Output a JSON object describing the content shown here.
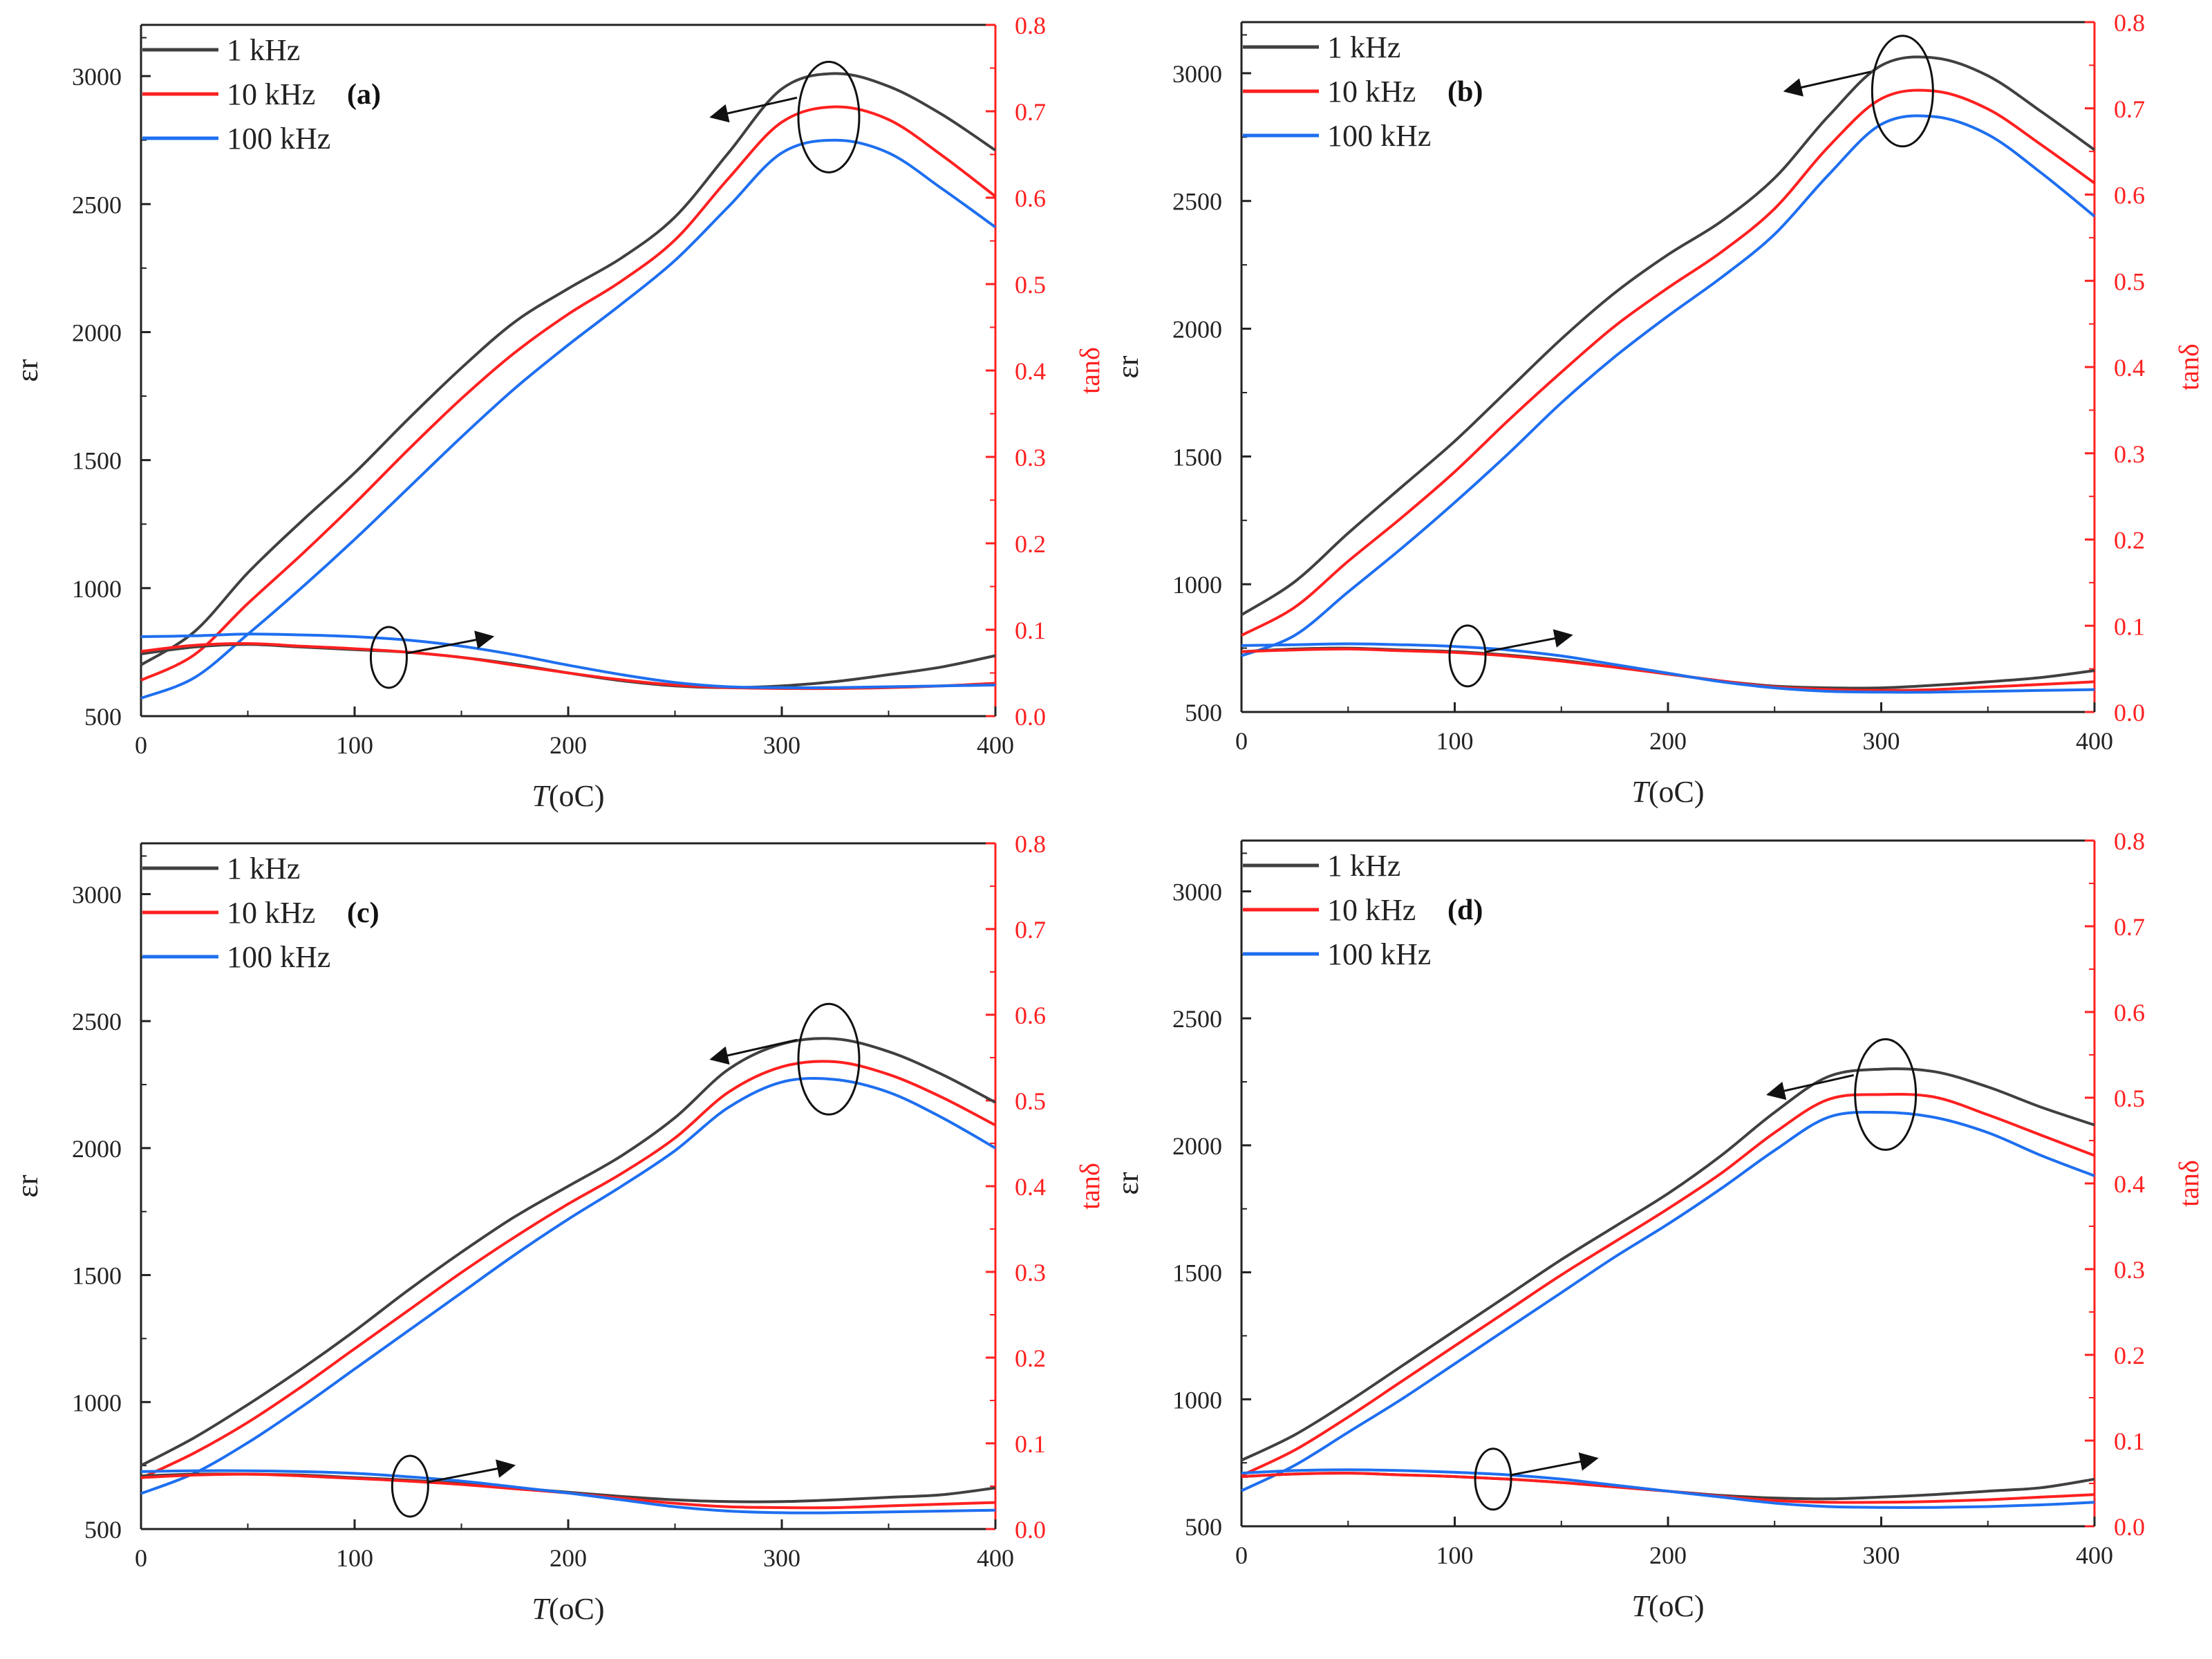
{
  "chart_data": [
    {
      "panel": "(a)",
      "type": "line",
      "xlabel_italic": "T",
      "xlabel_unit": "(oC)",
      "ylabel": "εr",
      "y2label": "tanδ",
      "xlim": [
        0,
        400
      ],
      "ylim": [
        500,
        3200
      ],
      "y2lim": [
        0,
        0.8
      ],
      "xticks": [
        "0",
        "100",
        "200",
        "300",
        "400"
      ],
      "yticks": [
        "500",
        "1000",
        "1500",
        "2000",
        "2500",
        "3000"
      ],
      "y2ticks": [
        "0.0",
        "0.1",
        "0.2",
        "0.3",
        "0.4",
        "0.5",
        "0.6",
        "0.7",
        "0.8"
      ],
      "legend": [
        "1 kHz",
        "10 kHz",
        "100 kHz"
      ],
      "x": [
        0,
        25,
        50,
        75,
        100,
        125,
        150,
        175,
        200,
        225,
        250,
        275,
        300,
        325,
        350,
        375,
        400
      ],
      "permittivity": [
        {
          "name": "1 kHz",
          "values": [
            700,
            830,
            1060,
            1260,
            1450,
            1660,
            1860,
            2040,
            2170,
            2290,
            2450,
            2700,
            2950,
            3010,
            2960,
            2850,
            2710
          ]
        },
        {
          "name": "10 kHz",
          "values": [
            640,
            740,
            940,
            1130,
            1330,
            1540,
            1740,
            1920,
            2070,
            2200,
            2360,
            2600,
            2820,
            2880,
            2830,
            2690,
            2530
          ]
        },
        {
          "name": "100 kHz",
          "values": [
            570,
            650,
            820,
            1000,
            1190,
            1390,
            1590,
            1780,
            1950,
            2110,
            2280,
            2490,
            2700,
            2750,
            2700,
            2560,
            2410
          ]
        }
      ],
      "loss": [
        {
          "name": "1 kHz",
          "values": [
            0.072,
            0.08,
            0.083,
            0.08,
            0.077,
            0.074,
            0.068,
            0.06,
            0.05,
            0.041,
            0.035,
            0.033,
            0.035,
            0.04,
            0.048,
            0.057,
            0.07
          ]
        },
        {
          "name": "10 kHz",
          "values": [
            0.075,
            0.082,
            0.084,
            0.081,
            0.078,
            0.074,
            0.068,
            0.059,
            0.05,
            0.042,
            0.036,
            0.033,
            0.032,
            0.032,
            0.033,
            0.035,
            0.038
          ]
        },
        {
          "name": "100 kHz",
          "values": [
            0.092,
            0.093,
            0.095,
            0.094,
            0.092,
            0.088,
            0.081,
            0.071,
            0.059,
            0.048,
            0.039,
            0.034,
            0.033,
            0.033,
            0.034,
            0.035,
            0.036
          ]
        }
      ],
      "markers": {
        "perm_x": 322,
        "perm_y": 2840,
        "loss_x": 116,
        "loss_y": 0.068
      }
    },
    {
      "panel": "(b)",
      "type": "line",
      "xlabel_italic": "T",
      "xlabel_unit": "(oC)",
      "ylabel": "εr",
      "y2label": "tanδ",
      "xlim": [
        0,
        400
      ],
      "ylim": [
        500,
        3200
      ],
      "y2lim": [
        0,
        0.8
      ],
      "xticks": [
        "0",
        "100",
        "200",
        "300",
        "400"
      ],
      "yticks": [
        "500",
        "1000",
        "1500",
        "2000",
        "2500",
        "3000"
      ],
      "y2ticks": [
        "0.0",
        "0.1",
        "0.2",
        "0.3",
        "0.4",
        "0.5",
        "0.6",
        "0.7",
        "0.8"
      ],
      "legend": [
        "1 kHz",
        "10 kHz",
        "100 kHz"
      ],
      "x": [
        0,
        25,
        50,
        75,
        100,
        125,
        150,
        175,
        200,
        225,
        250,
        275,
        300,
        325,
        350,
        375,
        400
      ],
      "permittivity": [
        {
          "name": "1 kHz",
          "values": [
            880,
            1010,
            1200,
            1380,
            1560,
            1760,
            1960,
            2140,
            2290,
            2420,
            2590,
            2830,
            3030,
            3060,
            2990,
            2850,
            2700
          ]
        },
        {
          "name": "10 kHz",
          "values": [
            800,
            910,
            1090,
            1260,
            1440,
            1640,
            1830,
            2010,
            2160,
            2300,
            2470,
            2710,
            2900,
            2930,
            2860,
            2720,
            2570
          ]
        },
        {
          "name": "100 kHz",
          "values": [
            720,
            800,
            970,
            1140,
            1320,
            1510,
            1710,
            1890,
            2050,
            2200,
            2370,
            2600,
            2800,
            2830,
            2760,
            2610,
            2440
          ]
        }
      ],
      "loss": [
        {
          "name": "1 kHz",
          "values": [
            0.07,
            0.073,
            0.074,
            0.072,
            0.07,
            0.066,
            0.06,
            0.052,
            0.044,
            0.036,
            0.03,
            0.028,
            0.028,
            0.031,
            0.035,
            0.04,
            0.048
          ]
        },
        {
          "name": "10 kHz",
          "values": [
            0.07,
            0.072,
            0.073,
            0.071,
            0.069,
            0.065,
            0.059,
            0.052,
            0.044,
            0.036,
            0.029,
            0.026,
            0.025,
            0.026,
            0.029,
            0.032,
            0.035
          ]
        },
        {
          "name": "100 kHz",
          "values": [
            0.077,
            0.078,
            0.079,
            0.078,
            0.076,
            0.072,
            0.065,
            0.055,
            0.045,
            0.035,
            0.028,
            0.024,
            0.023,
            0.023,
            0.024,
            0.025,
            0.026
          ]
        }
      ],
      "markers": {
        "perm_x": 310,
        "perm_y": 2930,
        "loss_x": 106,
        "loss_y": 0.065
      }
    },
    {
      "panel": "(c)",
      "type": "line",
      "xlabel_italic": "T",
      "xlabel_unit": "(oC)",
      "ylabel": "εr",
      "y2label": "tanδ",
      "xlim": [
        0,
        400
      ],
      "ylim": [
        500,
        3200
      ],
      "y2lim": [
        0,
        0.8
      ],
      "xticks": [
        "0",
        "100",
        "200",
        "300",
        "400"
      ],
      "yticks": [
        "500",
        "1000",
        "1500",
        "2000",
        "2500",
        "3000"
      ],
      "y2ticks": [
        "0.0",
        "0.1",
        "0.2",
        "0.3",
        "0.4",
        "0.5",
        "0.6",
        "0.7",
        "0.8"
      ],
      "legend": [
        "1 kHz",
        "10 kHz",
        "100 kHz"
      ],
      "x": [
        0,
        25,
        50,
        75,
        100,
        125,
        150,
        175,
        200,
        225,
        250,
        275,
        300,
        325,
        350,
        375,
        400
      ],
      "permittivity": [
        {
          "name": "1 kHz",
          "values": [
            750,
            860,
            990,
            1130,
            1280,
            1440,
            1590,
            1730,
            1850,
            1970,
            2120,
            2310,
            2410,
            2430,
            2380,
            2290,
            2180
          ]
        },
        {
          "name": "10 kHz",
          "values": [
            700,
            800,
            920,
            1060,
            1210,
            1360,
            1510,
            1650,
            1780,
            1900,
            2040,
            2220,
            2320,
            2340,
            2290,
            2200,
            2090
          ]
        },
        {
          "name": "100 kHz",
          "values": [
            640,
            720,
            840,
            980,
            1130,
            1280,
            1430,
            1580,
            1720,
            1850,
            1990,
            2160,
            2260,
            2270,
            2220,
            2120,
            2000
          ]
        }
      ],
      "loss": [
        {
          "name": "1 kHz",
          "values": [
            0.062,
            0.064,
            0.064,
            0.063,
            0.06,
            0.057,
            0.053,
            0.048,
            0.043,
            0.038,
            0.034,
            0.032,
            0.032,
            0.034,
            0.037,
            0.04,
            0.048
          ]
        },
        {
          "name": "10 kHz",
          "values": [
            0.06,
            0.063,
            0.064,
            0.062,
            0.059,
            0.056,
            0.052,
            0.047,
            0.042,
            0.036,
            0.03,
            0.026,
            0.025,
            0.025,
            0.027,
            0.029,
            0.031
          ]
        },
        {
          "name": "100 kHz",
          "values": [
            0.067,
            0.068,
            0.068,
            0.067,
            0.065,
            0.061,
            0.056,
            0.049,
            0.042,
            0.034,
            0.026,
            0.021,
            0.019,
            0.019,
            0.02,
            0.021,
            0.022
          ]
        }
      ],
      "markers": {
        "perm_x": 322,
        "perm_y": 2350,
        "loss_x": 126,
        "loss_y": 0.05
      }
    },
    {
      "panel": "(d)",
      "type": "line",
      "xlabel_italic": "T",
      "xlabel_unit": "(oC)",
      "ylabel": "εr",
      "y2label": "tanδ",
      "xlim": [
        0,
        400
      ],
      "ylim": [
        500,
        3200
      ],
      "y2lim": [
        0,
        0.8
      ],
      "xticks": [
        "0",
        "100",
        "200",
        "300",
        "400"
      ],
      "yticks": [
        "500",
        "1000",
        "1500",
        "2000",
        "2500",
        "3000"
      ],
      "y2ticks": [
        "0.0",
        "0.1",
        "0.2",
        "0.3",
        "0.4",
        "0.5",
        "0.6",
        "0.7",
        "0.8"
      ],
      "legend": [
        "1 kHz",
        "10 kHz",
        "100 kHz"
      ],
      "x": [
        0,
        25,
        50,
        75,
        100,
        125,
        150,
        175,
        200,
        225,
        250,
        275,
        300,
        325,
        350,
        375,
        400
      ],
      "permittivity": [
        {
          "name": "1 kHz",
          "values": [
            760,
            860,
            990,
            1130,
            1270,
            1410,
            1550,
            1680,
            1810,
            1960,
            2130,
            2270,
            2300,
            2290,
            2230,
            2150,
            2080
          ]
        },
        {
          "name": "10 kHz",
          "values": [
            700,
            800,
            930,
            1070,
            1210,
            1350,
            1490,
            1620,
            1750,
            1890,
            2050,
            2180,
            2200,
            2190,
            2120,
            2040,
            1960
          ]
        },
        {
          "name": "100 kHz",
          "values": [
            640,
            740,
            870,
            1000,
            1140,
            1280,
            1420,
            1560,
            1690,
            1830,
            1980,
            2110,
            2130,
            2110,
            2050,
            1960,
            1880
          ]
        }
      ],
      "loss": [
        {
          "name": "1 kHz",
          "values": [
            0.058,
            0.061,
            0.062,
            0.06,
            0.058,
            0.055,
            0.051,
            0.046,
            0.041,
            0.036,
            0.033,
            0.032,
            0.034,
            0.037,
            0.041,
            0.045,
            0.055
          ]
        },
        {
          "name": "10 kHz",
          "values": [
            0.058,
            0.061,
            0.062,
            0.06,
            0.058,
            0.055,
            0.051,
            0.046,
            0.041,
            0.035,
            0.03,
            0.028,
            0.028,
            0.029,
            0.031,
            0.034,
            0.037
          ]
        },
        {
          "name": "100 kHz",
          "values": [
            0.062,
            0.065,
            0.066,
            0.065,
            0.063,
            0.06,
            0.055,
            0.048,
            0.041,
            0.034,
            0.027,
            0.023,
            0.022,
            0.022,
            0.023,
            0.025,
            0.028
          ]
        }
      ],
      "markers": {
        "perm_x": 302,
        "perm_y": 2200,
        "loss_x": 118,
        "loss_y": 0.055
      }
    }
  ],
  "colors": {
    "1 kHz": "#404040",
    "10 kHz": "#ff2020",
    "100 kHz": "#1e6ff0",
    "axis": "#222222",
    "right_axis": "#ff2020"
  }
}
